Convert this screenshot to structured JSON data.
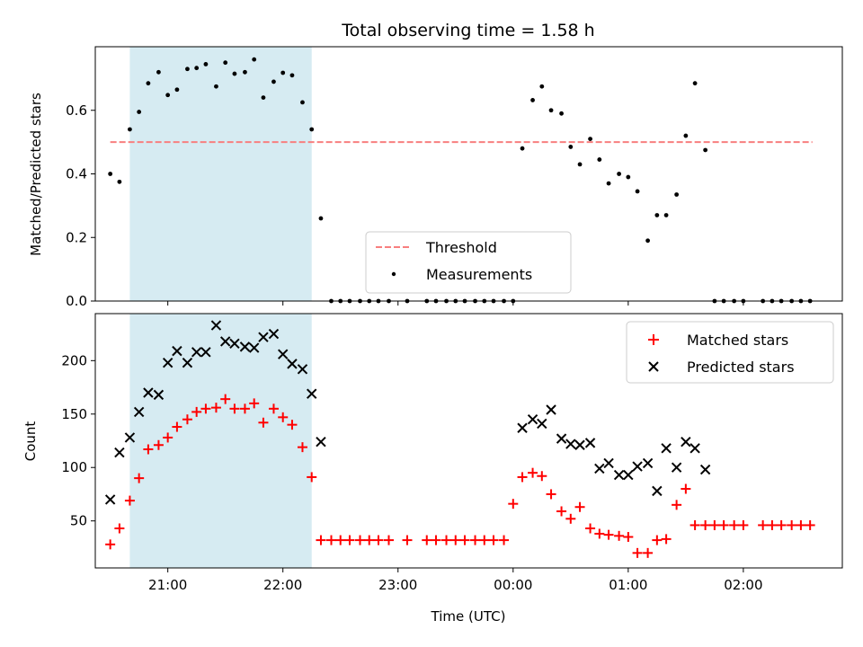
{
  "chart_data": [
    {
      "type": "scatter",
      "title": "Total observing time = 1.58 h",
      "xlabel": "",
      "ylabel": "Matched/Predicted stars",
      "xlim": [
        20.37,
        26.86
      ],
      "ylim": [
        0,
        0.8
      ],
      "yticks": [
        0.0,
        0.2,
        0.4,
        0.6
      ],
      "ytick_labels": [
        "0.0",
        "0.2",
        "0.4",
        "0.6"
      ],
      "xticks": [
        21,
        22,
        23,
        24,
        25,
        26
      ],
      "highlight_span": [
        20.67,
        22.25
      ],
      "threshold": {
        "name": "Threshold",
        "value": 0.5,
        "x_range": [
          20.5,
          26.6
        ],
        "color": "#f87f7f"
      },
      "legend": {
        "placement": "bottom-center",
        "entries": [
          "Threshold",
          "Measurements"
        ]
      },
      "series": [
        {
          "name": "Measurements",
          "color": "#000000",
          "x": [
            20.5,
            20.58,
            20.67,
            20.75,
            20.83,
            20.92,
            21.0,
            21.08,
            21.17,
            21.25,
            21.33,
            21.42,
            21.5,
            21.58,
            21.67,
            21.75,
            21.83,
            21.92,
            22.0,
            22.08,
            22.17,
            22.33,
            22.42,
            22.5,
            22.58,
            22.67,
            22.75,
            22.83,
            22.92,
            23.08,
            23.25,
            23.33,
            23.42,
            23.5,
            23.58,
            23.67,
            23.75,
            23.83,
            23.92,
            24.0,
            24.08,
            24.17,
            24.25,
            24.33,
            24.42,
            24.5,
            24.58,
            24.67,
            24.75,
            24.83,
            24.92,
            25.0,
            25.08,
            25.17,
            25.25,
            25.33,
            25.42,
            25.5,
            25.58,
            25.67,
            25.75,
            25.83,
            25.92,
            26.0,
            26.17,
            26.25,
            26.33,
            26.42,
            26.5,
            26.58
          ],
          "y": [
            0.4,
            0.375,
            0.54,
            0.595,
            0.685,
            0.72,
            0.648,
            0.665,
            0.73,
            0.733,
            0.745,
            0.675,
            0.75,
            0.715,
            0.72,
            0.76,
            0.64,
            0.69,
            0.718,
            0.71,
            0.625,
            0.26,
            0.0,
            0.0,
            0.0,
            0.0,
            0.0,
            0.0,
            0.0,
            0.0,
            0.0,
            0.0,
            0.0,
            0.0,
            0.0,
            0.0,
            0.0,
            0.0,
            0.0,
            0.0,
            0.48,
            0.632,
            0.675,
            0.6,
            0.59,
            0.485,
            0.43,
            0.51,
            0.445,
            0.37,
            0.4,
            0.39,
            0.345,
            0.19,
            0.27,
            0.27,
            0.335,
            0.52,
            0.685,
            0.475,
            0.0,
            0.0,
            0.0,
            0.0,
            0.0,
            0.0,
            0.0,
            0.0,
            0.0,
            0.0
          ]
        }
      ],
      "extra_point": {
        "x": 22.25,
        "y": 0.54
      }
    },
    {
      "type": "scatter",
      "title": "",
      "xlabel": "Time (UTC)",
      "ylabel": "Count",
      "xlim": [
        20.37,
        26.86
      ],
      "ylim": [
        6,
        244
      ],
      "yticks": [
        50,
        100,
        150,
        200
      ],
      "ytick_labels": [
        "50",
        "100",
        "150",
        "200"
      ],
      "xticks": [
        21,
        22,
        23,
        24,
        25,
        26
      ],
      "xtick_labels": [
        "21:00",
        "22:00",
        "23:00",
        "00:00",
        "01:00",
        "02:00"
      ],
      "highlight_span": [
        20.67,
        22.25
      ],
      "legend": {
        "placement": "top-right",
        "entries": [
          "Matched stars",
          "Predicted stars"
        ]
      },
      "series": [
        {
          "name": "Matched stars",
          "marker": "plus",
          "color": "#ff0000",
          "x": [
            20.5,
            20.58,
            20.67,
            20.75,
            20.83,
            20.92,
            21.0,
            21.08,
            21.17,
            21.25,
            21.33,
            21.42,
            21.5,
            21.58,
            21.67,
            21.75,
            21.83,
            21.92,
            22.0,
            22.08,
            22.17,
            22.25,
            22.33,
            22.42,
            22.5,
            22.58,
            22.67,
            22.75,
            22.83,
            22.92,
            23.08,
            23.25,
            23.33,
            23.42,
            23.5,
            23.58,
            23.67,
            23.75,
            23.83,
            23.92,
            24.0,
            24.08,
            24.17,
            24.25,
            24.33,
            24.42,
            24.5,
            24.58,
            24.67,
            24.75,
            24.83,
            24.92,
            25.0,
            25.08,
            25.17,
            25.25,
            25.33,
            25.42,
            25.5,
            25.58,
            25.67,
            25.75,
            25.83,
            25.92,
            26.0,
            26.17,
            26.25,
            26.33,
            26.42,
            26.5,
            26.58
          ],
          "y": [
            28,
            43,
            69,
            90,
            117,
            121,
            128,
            138,
            145,
            152,
            155,
            156,
            164,
            155,
            155,
            160,
            142,
            155,
            147,
            140,
            119,
            91,
            32,
            32,
            32,
            32,
            32,
            32,
            32,
            32,
            32,
            32,
            32,
            32,
            32,
            32,
            32,
            32,
            32,
            32,
            66,
            91,
            95,
            92,
            75,
            59,
            52,
            63,
            43,
            38,
            37,
            36,
            35,
            20,
            20,
            32,
            33,
            65,
            80,
            46,
            46,
            46,
            46,
            46,
            46,
            46,
            46,
            46,
            46,
            46,
            46
          ]
        },
        {
          "name": "Predicted stars",
          "marker": "x",
          "color": "#000000",
          "x": [
            20.5,
            20.58,
            20.67,
            20.75,
            20.83,
            20.92,
            21.0,
            21.08,
            21.17,
            21.25,
            21.33,
            21.42,
            21.5,
            21.58,
            21.67,
            21.75,
            21.83,
            21.92,
            22.0,
            22.08,
            22.17,
            22.25,
            22.33,
            24.08,
            24.17,
            24.25,
            24.33,
            24.42,
            24.5,
            24.58,
            24.67,
            24.75,
            24.83,
            24.92,
            25.0,
            25.08,
            25.17,
            25.25,
            25.33,
            25.42,
            25.5,
            25.58,
            25.67
          ],
          "y": [
            70,
            114,
            128,
            152,
            170,
            168,
            198,
            209,
            198,
            208,
            208,
            233,
            218,
            216,
            213,
            212,
            222,
            225,
            206,
            197,
            192,
            169,
            124,
            137,
            145,
            141,
            154,
            127,
            122,
            121,
            123,
            99,
            104,
            93,
            93,
            101,
            104,
            78,
            118,
            100,
            124,
            118,
            98
          ]
        }
      ]
    }
  ]
}
